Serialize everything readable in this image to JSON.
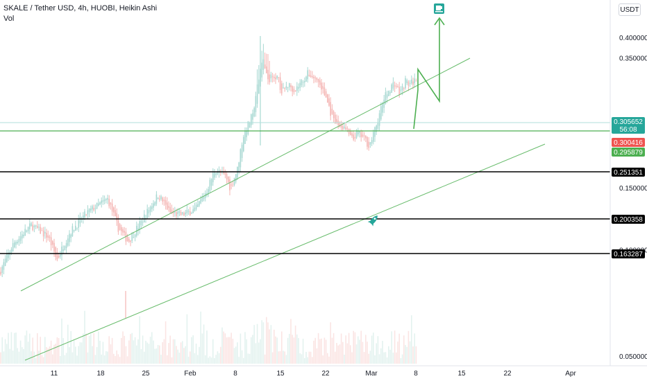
{
  "legend": {
    "title": "SKALE / Tether USD, 4h, HUOBI, Heikin Ashi",
    "volume_label": "Vol"
  },
  "currency_button": "USDT",
  "colors": {
    "up": "#26a69a",
    "up_light": "#a7d8d2",
    "down": "#ef5350",
    "down_light": "#f4b4b2",
    "channel": "#66bb6a",
    "level_line": "#000000",
    "current_price": "#26a69a",
    "red_badge": "#ef5350",
    "green_badge": "#4caf50",
    "arrow": "#4caf50",
    "rocket": "#26a69a"
  },
  "chart_data": {
    "type": "candlestick",
    "y_scale": "log",
    "y_ticks": [
      "0.400000",
      "0.350000",
      "0.150000",
      "0.100000",
      "0.050000"
    ],
    "x_ticks": [
      "11",
      "18",
      "25",
      "Feb",
      "8",
      "15",
      "22",
      "Mar",
      "8",
      "15",
      "22",
      "Apr"
    ],
    "horizontal_levels": [
      {
        "price": 0.295879,
        "label": "0.295879",
        "color": "#4caf50"
      },
      {
        "price": 0.251351,
        "label": "0.251351",
        "color": "#000000"
      },
      {
        "price": 0.200358,
        "label": "0.200358",
        "color": "#000000"
      },
      {
        "price": 0.163287,
        "label": "0.163287",
        "color": "#000000"
      }
    ],
    "price_labels": {
      "current": "0.305652",
      "countdown": "56:08",
      "red": "0.300416",
      "green": "0.295879"
    },
    "annotations": {
      "coffee_icon": "coffee-cup-icon",
      "rocket_icon": "rocket-icon"
    }
  }
}
